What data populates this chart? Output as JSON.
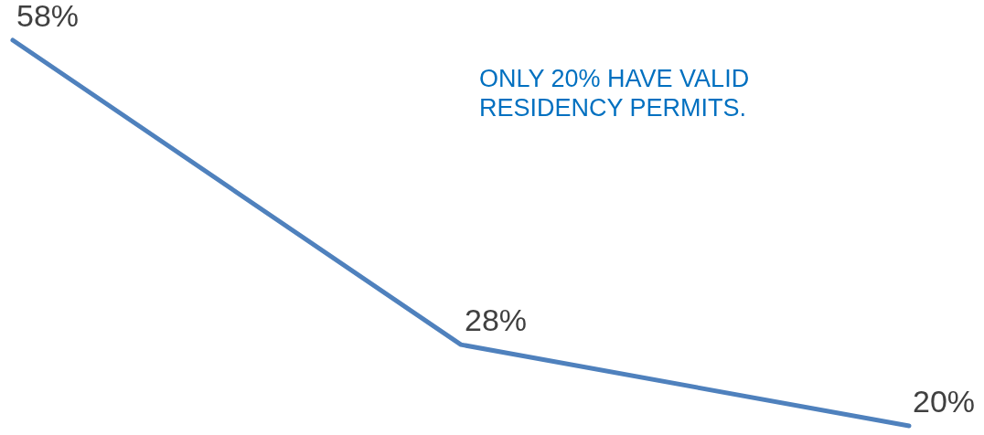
{
  "chart_data": {
    "type": "line",
    "categories": [
      null,
      null,
      null
    ],
    "series": [
      {
        "color": "#4f81bd",
        "values": [
          58,
          28,
          20
        ],
        "value_labels": [
          "58%",
          "28%",
          "20%"
        ]
      }
    ],
    "annotations": [
      "ONLY 20% HAVE VALID RESIDENCY PERMITS."
    ],
    "marker": "none",
    "line_style": "solid"
  }
}
